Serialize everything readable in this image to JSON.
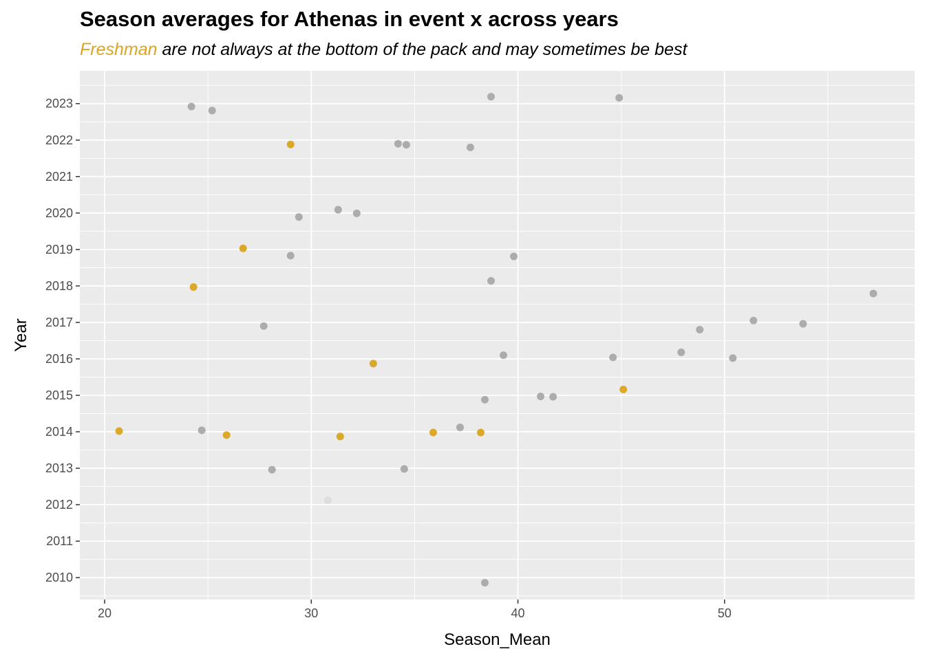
{
  "title": "Season averages for Athenas in event x across years",
  "subtitle": {
    "highlight": "Freshman",
    "rest": " are not always at the bottom of the pack and may sometimes be best"
  },
  "colors": {
    "panel": "#EBEBEB",
    "grid_major": "#FFFFFF",
    "freshman": "#DAA520",
    "other": "#A9A9A9",
    "faded": "#DCDCDC"
  },
  "chart_data": {
    "type": "scatter",
    "title": "Season averages for Athenas in event x across years",
    "xlabel": "Season_Mean",
    "ylabel": "Year",
    "xlim": [
      18.8,
      59.2
    ],
    "ylim": [
      2009.4,
      2023.9
    ],
    "x_ticks": [
      20,
      30,
      40,
      50
    ],
    "y_ticks": [
      2010,
      2011,
      2012,
      2013,
      2014,
      2015,
      2016,
      2017,
      2018,
      2019,
      2020,
      2021,
      2022,
      2023
    ],
    "grid": true,
    "legend": "none",
    "series": [
      {
        "class_year": "freshman",
        "color": "#DAA520",
        "points": [
          {
            "x": 29.0,
            "y": 2021.88
          },
          {
            "x": 26.7,
            "y": 2019.03
          },
          {
            "x": 24.3,
            "y": 2017.97
          },
          {
            "x": 33.0,
            "y": 2015.87
          },
          {
            "x": 45.1,
            "y": 2015.16
          },
          {
            "x": 20.7,
            "y": 2014.02
          },
          {
            "x": 25.9,
            "y": 2013.91
          },
          {
            "x": 31.4,
            "y": 2013.87
          },
          {
            "x": 35.9,
            "y": 2013.98
          },
          {
            "x": 38.2,
            "y": 2013.98
          }
        ]
      },
      {
        "class_year": "other",
        "color": "#A9A9A9",
        "points": [
          {
            "x": 24.2,
            "y": 2022.92
          },
          {
            "x": 25.2,
            "y": 2022.81
          },
          {
            "x": 38.7,
            "y": 2023.19
          },
          {
            "x": 44.9,
            "y": 2023.16
          },
          {
            "x": 34.2,
            "y": 2021.9
          },
          {
            "x": 34.6,
            "y": 2021.87
          },
          {
            "x": 37.7,
            "y": 2021.8
          },
          {
            "x": 31.3,
            "y": 2020.09
          },
          {
            "x": 32.2,
            "y": 2019.99
          },
          {
            "x": 29.4,
            "y": 2019.89
          },
          {
            "x": 29.0,
            "y": 2018.83
          },
          {
            "x": 39.8,
            "y": 2018.81
          },
          {
            "x": 38.7,
            "y": 2018.14
          },
          {
            "x": 57.2,
            "y": 2017.79
          },
          {
            "x": 27.7,
            "y": 2016.9
          },
          {
            "x": 51.4,
            "y": 2017.05
          },
          {
            "x": 53.8,
            "y": 2016.96
          },
          {
            "x": 48.8,
            "y": 2016.8
          },
          {
            "x": 39.3,
            "y": 2016.1
          },
          {
            "x": 44.6,
            "y": 2016.04
          },
          {
            "x": 47.9,
            "y": 2016.18
          },
          {
            "x": 50.4,
            "y": 2016.02
          },
          {
            "x": 38.4,
            "y": 2014.88
          },
          {
            "x": 41.1,
            "y": 2014.97
          },
          {
            "x": 41.7,
            "y": 2014.96
          },
          {
            "x": 37.2,
            "y": 2014.12
          },
          {
            "x": 24.7,
            "y": 2014.04
          },
          {
            "x": 28.1,
            "y": 2012.96
          },
          {
            "x": 34.5,
            "y": 2012.98
          },
          {
            "x": 38.4,
            "y": 2009.86
          }
        ]
      },
      {
        "class_year": "faded",
        "color": "#DCDCDC",
        "points": [
          {
            "x": 30.8,
            "y": 2012.12
          }
        ]
      }
    ]
  }
}
